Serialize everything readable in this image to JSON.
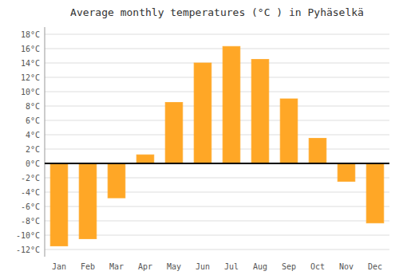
{
  "chart_data": {
    "type": "bar",
    "title": "Average monthly temperatures (°C ) in Pyhäselkä",
    "categories": [
      "Jan",
      "Feb",
      "Mar",
      "Apr",
      "May",
      "Jun",
      "Jul",
      "Aug",
      "Sep",
      "Oct",
      "Nov",
      "Dec"
    ],
    "values": [
      -11.5,
      -10.5,
      -4.8,
      1.2,
      8.5,
      14.0,
      16.3,
      14.5,
      9.0,
      3.5,
      -2.5,
      -8.3
    ],
    "color": "#FFA726",
    "ylim": [
      -13,
      19
    ],
    "yticks": [
      {
        "value": -12,
        "label": "-12°C"
      },
      {
        "value": -10,
        "label": "-10°C"
      },
      {
        "value": -8,
        "label": "-8°C"
      },
      {
        "value": -6,
        "label": "-6°C"
      },
      {
        "value": -4,
        "label": "-4°C"
      },
      {
        "value": -2,
        "label": "-2°C"
      },
      {
        "value": 0,
        "label": "0°C"
      },
      {
        "value": 2,
        "label": "2°C"
      },
      {
        "value": 4,
        "label": "4°C"
      },
      {
        "value": 6,
        "label": "6°C"
      },
      {
        "value": 8,
        "label": "8°C"
      },
      {
        "value": 10,
        "label": "10°C"
      },
      {
        "value": 12,
        "label": "12°C"
      },
      {
        "value": 14,
        "label": "14°C"
      },
      {
        "value": 16,
        "label": "16°C"
      },
      {
        "value": 18,
        "label": "18°C"
      }
    ],
    "grid": true
  }
}
